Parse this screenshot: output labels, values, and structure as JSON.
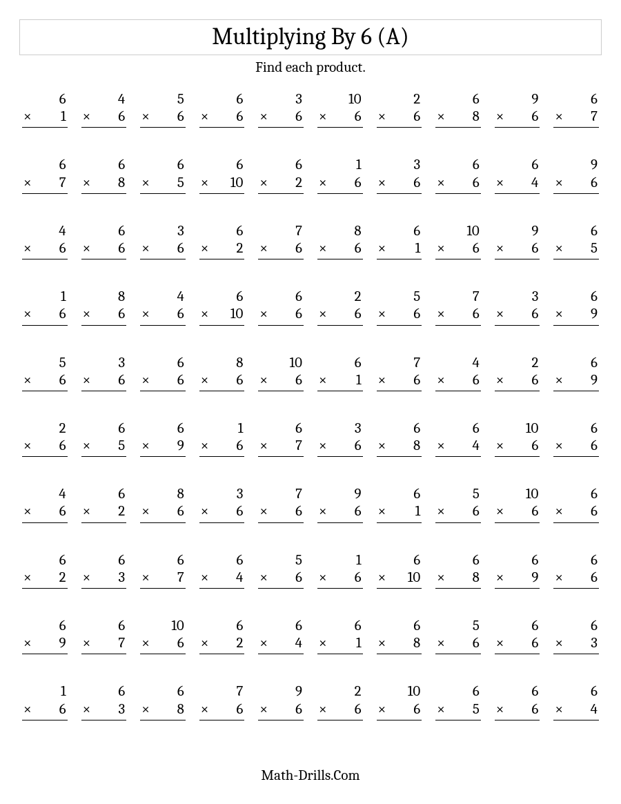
{
  "worksheet": {
    "title": "Multiplying By 6 (A)",
    "subtitle": "Find each product.",
    "footer": "Math-Drills.Com",
    "operator": "×",
    "columns": 10,
    "font_family": "Cambria, Georgia, serif",
    "title_fontsize": 34,
    "body_fontsize": 21,
    "text_color": "#000000",
    "background_color": "#ffffff",
    "title_border_color": "#cccccc",
    "rule_color": "#000000",
    "problems": [
      {
        "a": 6,
        "b": 1
      },
      {
        "a": 4,
        "b": 6
      },
      {
        "a": 5,
        "b": 6
      },
      {
        "a": 6,
        "b": 6
      },
      {
        "a": 3,
        "b": 6
      },
      {
        "a": 10,
        "b": 6
      },
      {
        "a": 2,
        "b": 6
      },
      {
        "a": 6,
        "b": 8
      },
      {
        "a": 9,
        "b": 6
      },
      {
        "a": 6,
        "b": 7
      },
      {
        "a": 6,
        "b": 7
      },
      {
        "a": 6,
        "b": 8
      },
      {
        "a": 6,
        "b": 5
      },
      {
        "a": 6,
        "b": 10
      },
      {
        "a": 6,
        "b": 2
      },
      {
        "a": 1,
        "b": 6
      },
      {
        "a": 3,
        "b": 6
      },
      {
        "a": 6,
        "b": 6
      },
      {
        "a": 6,
        "b": 4
      },
      {
        "a": 9,
        "b": 6
      },
      {
        "a": 4,
        "b": 6
      },
      {
        "a": 6,
        "b": 6
      },
      {
        "a": 3,
        "b": 6
      },
      {
        "a": 6,
        "b": 2
      },
      {
        "a": 7,
        "b": 6
      },
      {
        "a": 8,
        "b": 6
      },
      {
        "a": 6,
        "b": 1
      },
      {
        "a": 10,
        "b": 6
      },
      {
        "a": 9,
        "b": 6
      },
      {
        "a": 6,
        "b": 5
      },
      {
        "a": 1,
        "b": 6
      },
      {
        "a": 8,
        "b": 6
      },
      {
        "a": 4,
        "b": 6
      },
      {
        "a": 6,
        "b": 10
      },
      {
        "a": 6,
        "b": 6
      },
      {
        "a": 2,
        "b": 6
      },
      {
        "a": 5,
        "b": 6
      },
      {
        "a": 7,
        "b": 6
      },
      {
        "a": 3,
        "b": 6
      },
      {
        "a": 6,
        "b": 9
      },
      {
        "a": 5,
        "b": 6
      },
      {
        "a": 3,
        "b": 6
      },
      {
        "a": 6,
        "b": 6
      },
      {
        "a": 8,
        "b": 6
      },
      {
        "a": 10,
        "b": 6
      },
      {
        "a": 6,
        "b": 1
      },
      {
        "a": 7,
        "b": 6
      },
      {
        "a": 4,
        "b": 6
      },
      {
        "a": 2,
        "b": 6
      },
      {
        "a": 6,
        "b": 9
      },
      {
        "a": 2,
        "b": 6
      },
      {
        "a": 6,
        "b": 5
      },
      {
        "a": 6,
        "b": 9
      },
      {
        "a": 1,
        "b": 6
      },
      {
        "a": 6,
        "b": 7
      },
      {
        "a": 3,
        "b": 6
      },
      {
        "a": 6,
        "b": 8
      },
      {
        "a": 6,
        "b": 4
      },
      {
        "a": 10,
        "b": 6
      },
      {
        "a": 6,
        "b": 6
      },
      {
        "a": 4,
        "b": 6
      },
      {
        "a": 6,
        "b": 2
      },
      {
        "a": 8,
        "b": 6
      },
      {
        "a": 3,
        "b": 6
      },
      {
        "a": 7,
        "b": 6
      },
      {
        "a": 9,
        "b": 6
      },
      {
        "a": 6,
        "b": 1
      },
      {
        "a": 5,
        "b": 6
      },
      {
        "a": 10,
        "b": 6
      },
      {
        "a": 6,
        "b": 6
      },
      {
        "a": 6,
        "b": 2
      },
      {
        "a": 6,
        "b": 3
      },
      {
        "a": 6,
        "b": 7
      },
      {
        "a": 6,
        "b": 4
      },
      {
        "a": 5,
        "b": 6
      },
      {
        "a": 1,
        "b": 6
      },
      {
        "a": 6,
        "b": 10
      },
      {
        "a": 6,
        "b": 8
      },
      {
        "a": 6,
        "b": 9
      },
      {
        "a": 6,
        "b": 6
      },
      {
        "a": 6,
        "b": 9
      },
      {
        "a": 6,
        "b": 7
      },
      {
        "a": 10,
        "b": 6
      },
      {
        "a": 6,
        "b": 2
      },
      {
        "a": 6,
        "b": 4
      },
      {
        "a": 6,
        "b": 1
      },
      {
        "a": 6,
        "b": 8
      },
      {
        "a": 5,
        "b": 6
      },
      {
        "a": 6,
        "b": 6
      },
      {
        "a": 6,
        "b": 3
      },
      {
        "a": 1,
        "b": 6
      },
      {
        "a": 6,
        "b": 3
      },
      {
        "a": 6,
        "b": 8
      },
      {
        "a": 7,
        "b": 6
      },
      {
        "a": 9,
        "b": 6
      },
      {
        "a": 2,
        "b": 6
      },
      {
        "a": 10,
        "b": 6
      },
      {
        "a": 6,
        "b": 5
      },
      {
        "a": 6,
        "b": 6
      },
      {
        "a": 6,
        "b": 4
      }
    ]
  }
}
